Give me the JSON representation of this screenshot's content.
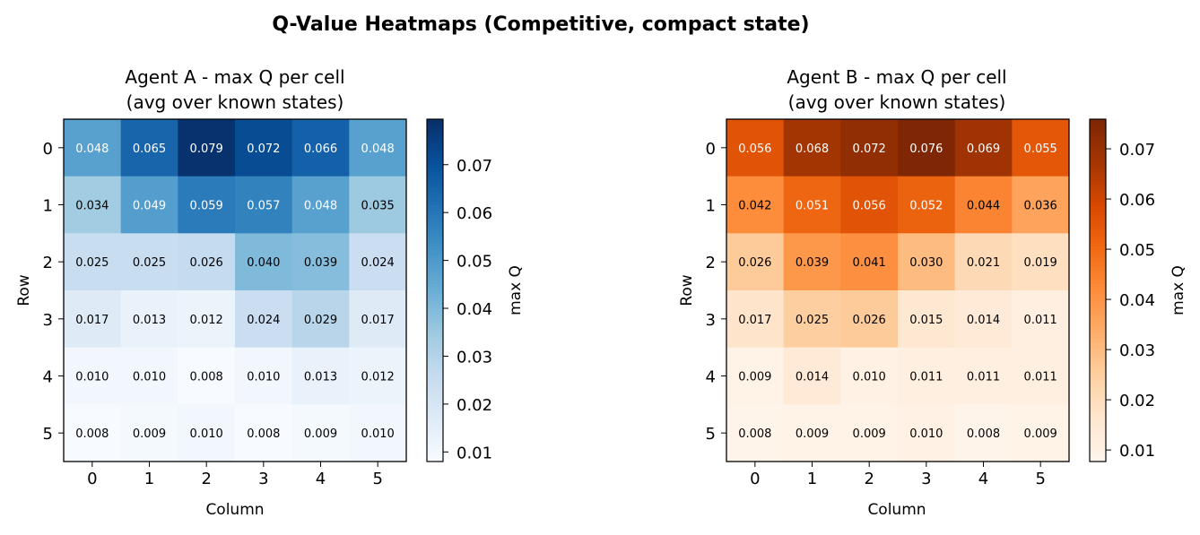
{
  "suptitle": "Q-Value Heatmaps (Competitive, compact state)",
  "chart_data": [
    {
      "type": "heatmap",
      "title_line1": "Agent A - max Q per cell",
      "title_line2": "(avg over known states)",
      "xlabel": "Column",
      "ylabel": "Row",
      "x_ticks": [
        "0",
        "1",
        "2",
        "3",
        "4",
        "5"
      ],
      "y_ticks": [
        "0",
        "1",
        "2",
        "3",
        "4",
        "5"
      ],
      "colormap": "Blues",
      "colorbar_label": "max Q",
      "colorbar_range": [
        0.008,
        0.0795
      ],
      "colorbar_ticks": [
        "0.01",
        "0.02",
        "0.03",
        "0.04",
        "0.05",
        "0.06",
        "0.07"
      ],
      "values": [
        [
          0.048,
          0.065,
          0.079,
          0.072,
          0.066,
          0.048
        ],
        [
          0.034,
          0.049,
          0.059,
          0.057,
          0.048,
          0.035
        ],
        [
          0.025,
          0.025,
          0.026,
          0.04,
          0.039,
          0.024
        ],
        [
          0.017,
          0.013,
          0.012,
          0.024,
          0.029,
          0.017
        ],
        [
          0.01,
          0.01,
          0.008,
          0.01,
          0.013,
          0.012
        ],
        [
          0.008,
          0.009,
          0.01,
          0.008,
          0.009,
          0.01
        ]
      ]
    },
    {
      "type": "heatmap",
      "title_line1": "Agent B - max Q per cell",
      "title_line2": "(avg over known states)",
      "xlabel": "Column",
      "ylabel": "Row",
      "x_ticks": [
        "0",
        "1",
        "2",
        "3",
        "4",
        "5"
      ],
      "y_ticks": [
        "0",
        "1",
        "2",
        "3",
        "4",
        "5"
      ],
      "colormap": "Oranges",
      "colorbar_label": "max Q",
      "colorbar_range": [
        0.0077,
        0.0759
      ],
      "colorbar_ticks": [
        "0.01",
        "0.02",
        "0.03",
        "0.04",
        "0.05",
        "0.06",
        "0.07"
      ],
      "values": [
        [
          0.056,
          0.068,
          0.072,
          0.076,
          0.069,
          0.055
        ],
        [
          0.042,
          0.051,
          0.056,
          0.052,
          0.044,
          0.036
        ],
        [
          0.026,
          0.039,
          0.041,
          0.03,
          0.021,
          0.019
        ],
        [
          0.017,
          0.025,
          0.026,
          0.015,
          0.014,
          0.011
        ],
        [
          0.009,
          0.014,
          0.01,
          0.011,
          0.011,
          0.011
        ],
        [
          0.008,
          0.009,
          0.009,
          0.01,
          0.008,
          0.009
        ]
      ]
    }
  ]
}
